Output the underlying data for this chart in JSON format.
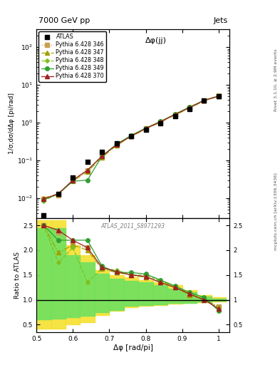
{
  "title_left": "7000 GeV pp",
  "title_right": "Jets",
  "annotation_main": "Δφ(jj)",
  "annotation_ref": "ATLAS_2011_S8971293",
  "ylabel_main": "1/σ;dσ/dΔφ [pi/rad]",
  "ylabel_ratio": "Ratio to ATLAS",
  "xlabel": "Δφ [rad/pi]",
  "right_label_top": "Rivet 3.1.10, ≥ 2.9M events",
  "right_label_bot": "mcplots.cern.ch [arXiv:1306.3436]",
  "xlim": [
    0.5,
    1.03
  ],
  "ylim_main": [
    0.003,
    300.0
  ],
  "ylim_ratio": [
    0.35,
    2.65
  ],
  "x_atlas": [
    0.52,
    0.56,
    0.6,
    0.64,
    0.68,
    0.72,
    0.76,
    0.8,
    0.84,
    0.88,
    0.92,
    0.96,
    1.0
  ],
  "y_atlas": [
    0.0035,
    0.013,
    0.035,
    0.09,
    0.17,
    0.28,
    0.44,
    0.65,
    0.95,
    1.5,
    2.3,
    3.8,
    5.0
  ],
  "series": [
    {
      "label": "Pythia 6.428 346",
      "color": "#c8a050",
      "linestyle": "dotted",
      "marker": "s",
      "markersize": 4,
      "x": [
        0.52,
        0.56,
        0.6,
        0.64,
        0.68,
        0.72,
        0.76,
        0.8,
        0.84,
        0.88,
        0.92,
        0.96,
        1.0
      ],
      "y": [
        0.0095,
        0.012,
        0.03,
        0.055,
        0.13,
        0.26,
        0.44,
        0.7,
        1.05,
        1.65,
        2.5,
        3.9,
        5.2
      ]
    },
    {
      "label": "Pythia 6.428 347",
      "color": "#a0a000",
      "linestyle": "dashdot",
      "marker": "^",
      "markersize": 4,
      "x": [
        0.52,
        0.56,
        0.6,
        0.64,
        0.68,
        0.72,
        0.76,
        0.8,
        0.84,
        0.88,
        0.92,
        0.96,
        1.0
      ],
      "y": [
        0.01,
        0.013,
        0.028,
        0.05,
        0.12,
        0.25,
        0.43,
        0.68,
        1.02,
        1.6,
        2.4,
        3.8,
        5.1
      ]
    },
    {
      "label": "Pythia 6.428 348",
      "color": "#80c020",
      "linestyle": "dashed",
      "marker": "D",
      "markersize": 3,
      "x": [
        0.52,
        0.56,
        0.6,
        0.64,
        0.68,
        0.72,
        0.76,
        0.8,
        0.84,
        0.88,
        0.92,
        0.96,
        1.0
      ],
      "y": [
        0.0085,
        0.013,
        0.03,
        0.055,
        0.13,
        0.26,
        0.44,
        0.7,
        1.05,
        1.65,
        2.5,
        3.9,
        5.2
      ]
    },
    {
      "label": "Pythia 6.428 349",
      "color": "#30a030",
      "linestyle": "solid",
      "marker": "o",
      "markersize": 4,
      "x": [
        0.52,
        0.56,
        0.6,
        0.64,
        0.68,
        0.72,
        0.76,
        0.8,
        0.84,
        0.88,
        0.92,
        0.96,
        1.0
      ],
      "y": [
        0.009,
        0.013,
        0.028,
        0.03,
        0.13,
        0.27,
        0.46,
        0.72,
        1.07,
        1.68,
        2.6,
        3.9,
        5.0
      ]
    },
    {
      "label": "Pythia 6.428 370",
      "color": "#a02020",
      "linestyle": "solid",
      "marker": "^",
      "markersize": 4,
      "x": [
        0.52,
        0.56,
        0.6,
        0.64,
        0.68,
        0.72,
        0.76,
        0.8,
        0.84,
        0.88,
        0.92,
        0.96,
        1.0
      ],
      "y": [
        0.0095,
        0.013,
        0.03,
        0.055,
        0.13,
        0.26,
        0.44,
        0.7,
        1.05,
        1.65,
        2.5,
        3.9,
        5.0
      ]
    }
  ],
  "ratio_series": [
    {
      "label": "Pythia 6.428 346",
      "color": "#c8a050",
      "linestyle": "dotted",
      "marker": "s",
      "markersize": 4,
      "x": [
        0.52,
        0.56,
        0.6,
        0.64,
        0.68,
        0.72,
        0.76,
        0.8,
        0.84,
        0.88,
        0.92,
        0.96,
        1.0
      ],
      "y": [
        2.5,
        2.35,
        2.1,
        2.05,
        1.65,
        1.55,
        1.5,
        1.45,
        1.35,
        1.25,
        1.1,
        1.02,
        0.86
      ]
    },
    {
      "label": "Pythia 6.428 347",
      "color": "#a0a000",
      "linestyle": "dashdot",
      "marker": "^",
      "markersize": 4,
      "x": [
        0.52,
        0.56,
        0.6,
        0.64,
        0.68,
        0.72,
        0.76,
        0.8,
        0.84,
        0.88,
        0.92,
        0.96,
        1.0
      ],
      "y": [
        2.5,
        1.95,
        2.1,
        2.0,
        1.62,
        1.55,
        1.5,
        1.45,
        1.38,
        1.27,
        1.1,
        1.02,
        0.85
      ]
    },
    {
      "label": "Pythia 6.428 348",
      "color": "#80c020",
      "linestyle": "dashed",
      "marker": "D",
      "markersize": 3,
      "x": [
        0.52,
        0.56,
        0.6,
        0.64,
        0.68,
        0.72,
        0.76,
        0.8,
        0.84,
        0.88,
        0.92,
        0.96,
        1.0
      ],
      "y": [
        2.5,
        1.75,
        2.05,
        1.35,
        1.63,
        1.6,
        1.5,
        1.5,
        1.38,
        1.27,
        1.12,
        1.02,
        0.82
      ]
    },
    {
      "label": "Pythia 6.428 349",
      "color": "#30a030",
      "linestyle": "solid",
      "marker": "o",
      "markersize": 4,
      "x": [
        0.52,
        0.56,
        0.6,
        0.64,
        0.68,
        0.72,
        0.76,
        0.8,
        0.84,
        0.88,
        0.92,
        0.96,
        1.0
      ],
      "y": [
        2.5,
        2.2,
        2.2,
        2.2,
        1.68,
        1.55,
        1.55,
        1.52,
        1.4,
        1.28,
        1.15,
        1.05,
        0.78
      ]
    },
    {
      "label": "Pythia 6.428 370",
      "color": "#a02020",
      "linestyle": "solid",
      "marker": "^",
      "markersize": 4,
      "x": [
        0.52,
        0.56,
        0.6,
        0.64,
        0.68,
        0.72,
        0.76,
        0.8,
        0.84,
        0.88,
        0.92,
        0.96,
        1.0
      ],
      "y": [
        2.5,
        2.4,
        2.2,
        2.05,
        1.65,
        1.57,
        1.5,
        1.47,
        1.35,
        1.25,
        1.12,
        1.0,
        0.82
      ]
    }
  ],
  "band_x_edges": [
    0.5,
    0.54,
    0.58,
    0.62,
    0.66,
    0.7,
    0.74,
    0.78,
    0.82,
    0.86,
    0.9,
    0.94,
    0.98,
    1.02
  ],
  "band_yellow_lo": [
    0.42,
    0.42,
    0.5,
    0.55,
    0.7,
    0.78,
    0.85,
    0.88,
    0.9,
    0.92,
    0.93,
    0.95,
    0.97,
    0.97
  ],
  "band_yellow_hi": [
    2.6,
    2.6,
    2.1,
    1.9,
    1.6,
    1.5,
    1.45,
    1.4,
    1.35,
    1.3,
    1.2,
    1.1,
    1.05,
    1.05
  ],
  "band_green_lo": [
    0.6,
    0.62,
    0.65,
    0.68,
    0.75,
    0.8,
    0.88,
    0.9,
    0.91,
    0.93,
    0.94,
    0.96,
    0.98,
    0.98
  ],
  "band_green_hi": [
    2.45,
    2.45,
    1.9,
    1.75,
    1.52,
    1.42,
    1.38,
    1.35,
    1.3,
    1.23,
    1.15,
    1.07,
    1.02,
    1.02
  ]
}
